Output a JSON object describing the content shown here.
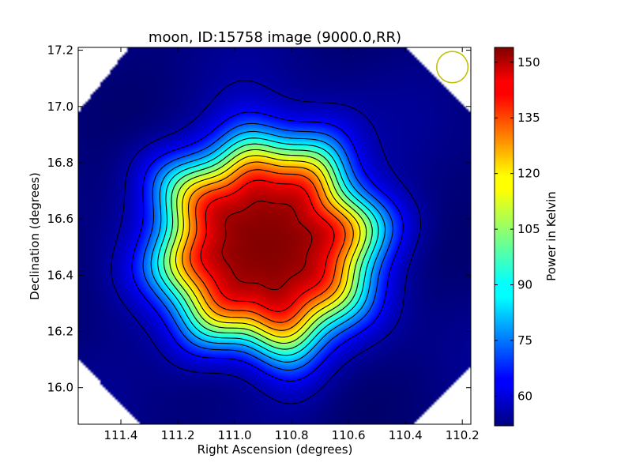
{
  "chart_data": {
    "type": "heatmap",
    "title": "moon, ID:15758 image (9000.0,RR)",
    "xlabel": "Right Ascension (degrees)",
    "ylabel": "Declination (degrees)",
    "colorbar_label": "Power in Kelvin",
    "colormap": "jet",
    "xlim": [
      111.55,
      110.17
    ],
    "ylim": [
      15.87,
      17.21
    ],
    "x_ticks": [
      111.4,
      111.2,
      111.0,
      110.8,
      110.6,
      110.4,
      110.2
    ],
    "x_tick_labels": [
      "111.4",
      "111.2",
      "111.0",
      "110.8",
      "110.6",
      "110.4",
      "110.2"
    ],
    "y_ticks": [
      16.0,
      16.2,
      16.4,
      16.6,
      16.8,
      17.0,
      17.2
    ],
    "y_tick_labels": [
      "16.0",
      "16.2",
      "16.4",
      "16.6",
      "16.8",
      "17.0",
      "17.2"
    ],
    "colorbar_range": [
      52,
      154
    ],
    "colorbar_ticks": [
      60,
      75,
      90,
      105,
      120,
      135,
      150
    ],
    "colorbar_tick_labels": [
      "60",
      "75",
      "90",
      "105",
      "120",
      "135",
      "150"
    ],
    "source": {
      "center_ra": 110.89,
      "center_dec": 16.51,
      "peak_kelvin": 154,
      "background_kelvin": 52,
      "radius_deg": 0.35
    },
    "beam": {
      "ra": 110.235,
      "dec": 17.14,
      "radius_deg": 0.055,
      "color": "#bfbf00"
    },
    "contour_count": 12
  }
}
